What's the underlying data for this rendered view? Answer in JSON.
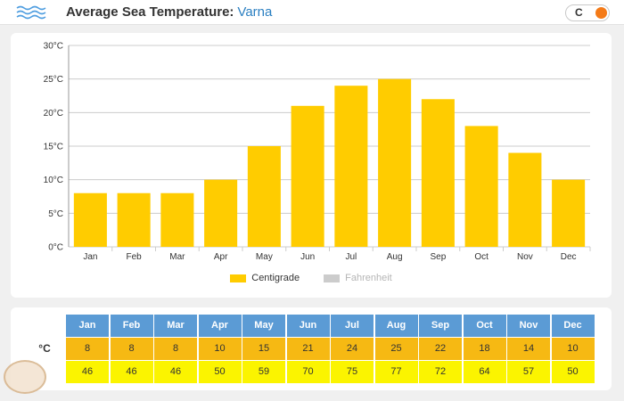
{
  "header": {
    "title": "Average Sea Temperature:",
    "city": "Varna",
    "unit_toggle": "C"
  },
  "colors": {
    "bar": "#ffcc00",
    "grid": "#cccccc",
    "header_blue": "#5b9bd5",
    "celsius_row": "#f6b913",
    "fahrenheit_row": "#fbf400",
    "toggle_knob": "#f47a17"
  },
  "chart_data": {
    "type": "bar",
    "categories": [
      "Jan",
      "Feb",
      "Mar",
      "Apr",
      "May",
      "Jun",
      "Jul",
      "Aug",
      "Sep",
      "Oct",
      "Nov",
      "Dec"
    ],
    "series": [
      {
        "name": "Centigrade",
        "values": [
          8,
          8,
          8,
          10,
          15,
          21,
          24,
          25,
          22,
          18,
          14,
          10
        ],
        "visible": true
      },
      {
        "name": "Fahrenheit",
        "values": [
          46,
          46,
          46,
          50,
          59,
          70,
          75,
          77,
          72,
          64,
          57,
          50
        ],
        "visible": false
      }
    ],
    "yticks": [
      "0°C",
      "5°C",
      "10°C",
      "15°C",
      "20°C",
      "25°C",
      "30°C"
    ],
    "ylim": [
      0,
      30
    ],
    "grid": true,
    "legend_position": "bottom"
  },
  "table": {
    "months": [
      "Jan",
      "Feb",
      "Mar",
      "Apr",
      "May",
      "Jun",
      "Jul",
      "Aug",
      "Sep",
      "Oct",
      "Nov",
      "Dec"
    ],
    "celsius_label": "°C",
    "celsius": [
      "8",
      "8",
      "8",
      "10",
      "15",
      "21",
      "24",
      "25",
      "22",
      "18",
      "14",
      "10"
    ],
    "fahrenheit": [
      "46",
      "46",
      "46",
      "50",
      "59",
      "70",
      "75",
      "77",
      "72",
      "64",
      "57",
      "50"
    ]
  }
}
